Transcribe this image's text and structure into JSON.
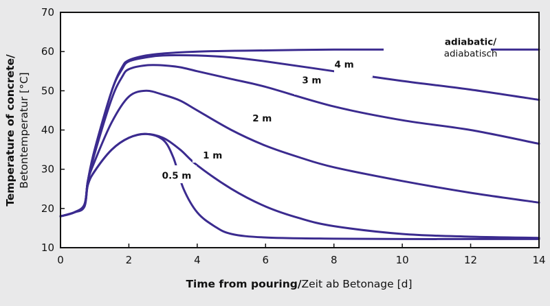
{
  "chart_data": {
    "type": "line",
    "xlabel_bold": "Time from pouring/",
    "xlabel_normal": "Zeit ab Betonage [d]",
    "ylabel_bold": "Temperature of concrete/",
    "ylabel_normal": "Betontemperatur [°C]",
    "xlim": [
      0,
      14
    ],
    "ylim": [
      10,
      70
    ],
    "xticks": [
      "0",
      "2",
      "4",
      "6",
      "8",
      "10",
      "12",
      "14"
    ],
    "yticks": [
      "10",
      "20",
      "30",
      "40",
      "50",
      "60",
      "70"
    ],
    "grid": false,
    "legend": "none",
    "line_color": "#3b2b8f",
    "series": [
      {
        "name": "adiabatic/",
        "name2": "adiabatisch",
        "x": [
          0,
          0.4,
          0.7,
          0.8,
          1.0,
          1.5,
          1.8,
          2.0,
          2.5,
          3.0,
          4.0,
          6.0,
          8.0,
          10.0,
          12.0,
          14.0
        ],
        "y": [
          18,
          19,
          21,
          27,
          35,
          50,
          56,
          57.8,
          59,
          59.5,
          60,
          60.3,
          60.5,
          60.5,
          60.5,
          60.5
        ]
      },
      {
        "name": "4 m",
        "x": [
          0,
          0.4,
          0.7,
          0.8,
          1.0,
          1.5,
          1.8,
          2.0,
          2.5,
          3.0,
          4.0,
          5.0,
          6.0,
          8.0,
          10.0,
          12.0,
          14.0
        ],
        "y": [
          18,
          19,
          21,
          27,
          35,
          50,
          55.5,
          57.5,
          58.5,
          59,
          59,
          58.5,
          57.5,
          55,
          52.5,
          50.3,
          47.7
        ]
      },
      {
        "name": "3 m",
        "x": [
          0,
          0.4,
          0.7,
          0.8,
          1.0,
          1.5,
          1.8,
          2.0,
          2.5,
          3.0,
          3.5,
          4.0,
          5.0,
          6.0,
          8.0,
          10.0,
          12.0,
          14.0
        ],
        "y": [
          18,
          19,
          21,
          27,
          34,
          48,
          53.5,
          55.5,
          56.5,
          56.5,
          56,
          55,
          53,
          51,
          46,
          42.5,
          40,
          36.5
        ]
      },
      {
        "name": "2 m",
        "x": [
          0,
          0.4,
          0.7,
          0.8,
          1.0,
          1.5,
          2.0,
          2.5,
          3.0,
          3.5,
          4.0,
          5.0,
          6.0,
          7.0,
          8.0,
          10.0,
          12.0,
          14.0
        ],
        "y": [
          18,
          19,
          20.5,
          27,
          32,
          42,
          48.5,
          50,
          49,
          47.5,
          45,
          40,
          36,
          33,
          30.5,
          27,
          24,
          21.5
        ]
      },
      {
        "name": "1 m",
        "x": [
          0,
          0.4,
          0.7,
          0.8,
          1.0,
          1.5,
          2.0,
          2.5,
          3.0,
          3.5,
          4.0,
          5.0,
          6.0,
          7.0,
          8.0,
          10.0,
          12.0,
          14.0
        ],
        "y": [
          18,
          19,
          20.5,
          26,
          29.5,
          35,
          38,
          39,
          38,
          35,
          31,
          25,
          20.5,
          17.5,
          15.5,
          13.5,
          12.8,
          12.5
        ]
      },
      {
        "name": "0.5 m",
        "x": [
          0,
          0.4,
          0.7,
          0.8,
          1.0,
          1.5,
          2.0,
          2.5,
          3.0,
          3.3,
          3.6,
          4.0,
          4.5,
          5.0,
          6.0,
          8.0,
          10.0,
          12.0,
          14.0
        ],
        "y": [
          18,
          19,
          20.5,
          26,
          29.5,
          35,
          38,
          39,
          37.5,
          33,
          25,
          19,
          15.5,
          13.5,
          12.6,
          12.3,
          12.2,
          12.2,
          12.2
        ]
      }
    ]
  }
}
